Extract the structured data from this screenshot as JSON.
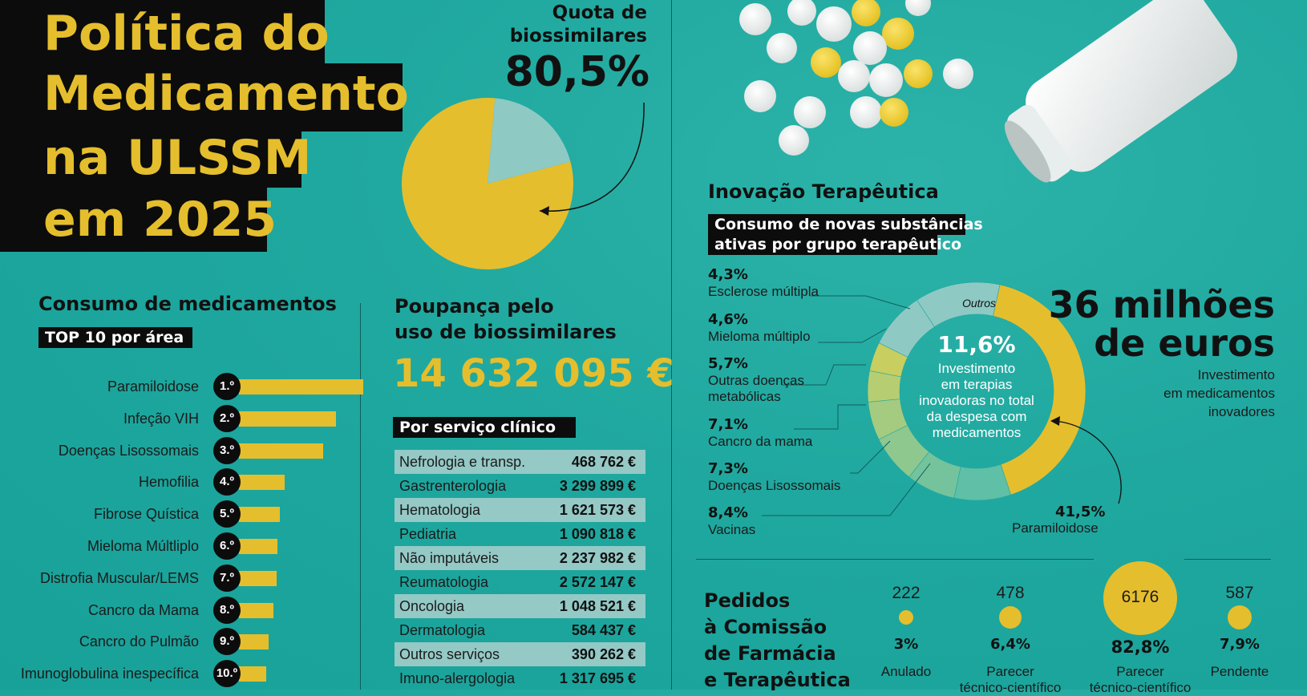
{
  "title": {
    "line1": "Política do",
    "line2": "Medicamento",
    "line3": "na ULSSM",
    "line4": "em 2025"
  },
  "biosimilar_share": {
    "label_line1": "Quota de",
    "label_line2": "biossimilares",
    "value": "80,5%",
    "share": 80.5
  },
  "top10": {
    "heading": "Consumo de medicamentos",
    "tag": "TOP 10 por área",
    "items": [
      {
        "rank": "1.º",
        "label": "Paramiloidose",
        "bar": 1.0
      },
      {
        "rank": "2.º",
        "label": "Infeção VIH",
        "bar": 0.78
      },
      {
        "rank": "3.º",
        "label": "Doenças Lisossomais",
        "bar": 0.68
      },
      {
        "rank": "4.º",
        "label": "Hemofilia",
        "bar": 0.37
      },
      {
        "rank": "5.º",
        "label": "Fibrose Quística",
        "bar": 0.33
      },
      {
        "rank": "6.º",
        "label": "Mieloma Múltliplo",
        "bar": 0.31
      },
      {
        "rank": "7.º",
        "label": "Distrofia Muscular/LEMS",
        "bar": 0.3
      },
      {
        "rank": "8.º",
        "label": "Cancro da Mama",
        "bar": 0.28
      },
      {
        "rank": "9.º",
        "label": "Cancro do Pulmão",
        "bar": 0.24
      },
      {
        "rank": "10.º",
        "label": "Imunoglobulina inespecífica",
        "bar": 0.22
      }
    ]
  },
  "savings": {
    "heading_line1": "Poupança pelo",
    "heading_line2": "uso de biossimilares",
    "value": "14 632 095 €",
    "tag": "Por serviço clínico",
    "rows": [
      {
        "name": "Nefrologia e transp.",
        "value": "468 762 €"
      },
      {
        "name": "Gastrenterologia",
        "value": "3 299 899 €"
      },
      {
        "name": "Hematologia",
        "value": "1 621 573 €"
      },
      {
        "name": "Pediatria",
        "value": "1 090 818 €"
      },
      {
        "name": "Não imputáveis",
        "value": "2 237 982 €"
      },
      {
        "name": "Reumatologia",
        "value": "2 572 147 €"
      },
      {
        "name": "Oncologia",
        "value": "1 048 521 €"
      },
      {
        "name": "Dermatologia",
        "value": "584 437 €"
      },
      {
        "name": "Outros serviços",
        "value": "390 262 €"
      },
      {
        "name": "Imuno-alergologia",
        "value": "1 317 695 €"
      }
    ]
  },
  "innovation": {
    "heading": "Inovação Terapêutica",
    "tag_line1": "Consumo de novas substâncias",
    "tag_line2": "ativas por grupo terapêutico",
    "center_pct": "11,6%",
    "center_text": [
      "Investimento",
      "em terapias",
      "inovadoras no total",
      "da despesa com",
      "medicamentos"
    ],
    "outros_label": "Outros",
    "groups": [
      {
        "pct": "4,3%",
        "name": [
          "Esclerose múltipla"
        ]
      },
      {
        "pct": "4,6%",
        "name": [
          "Mieloma múltiplo"
        ]
      },
      {
        "pct": "5,7%",
        "name": [
          "Outras doenças",
          "metabólicas"
        ]
      },
      {
        "pct": "7,1%",
        "name": [
          "Cancro da mama"
        ]
      },
      {
        "pct": "7,3%",
        "name": [
          "Doenças Lisossomais"
        ]
      },
      {
        "pct": "8,4%",
        "name": [
          "Vacinas"
        ]
      }
    ],
    "main_pct": "41,5%",
    "main_name": "Paramiloidose",
    "investment_value_line1": "36 milhões",
    "investment_value_line2": "de euros",
    "investment_caption": [
      "Investimento",
      "em medicamentos",
      "inovadores"
    ],
    "colors": {
      "accent": "#e5be2d",
      "outros": "#8fc9c4"
    }
  },
  "requests": {
    "heading": [
      "Pedidos",
      "à Comissão",
      "de Farmácia",
      "e Terapêutica"
    ],
    "items": [
      {
        "count": "222",
        "pct": "3%",
        "label": [
          "Anulado"
        ]
      },
      {
        "count": "478",
        "pct": "6,4%",
        "label": [
          "Parecer",
          "técnico-científico"
        ]
      },
      {
        "count": "6176",
        "pct": "82,8%",
        "label": [
          "Parecer",
          "técnico-científico"
        ]
      },
      {
        "count": "587",
        "pct": "7,9%",
        "label": [
          "Pendente"
        ]
      }
    ]
  }
}
